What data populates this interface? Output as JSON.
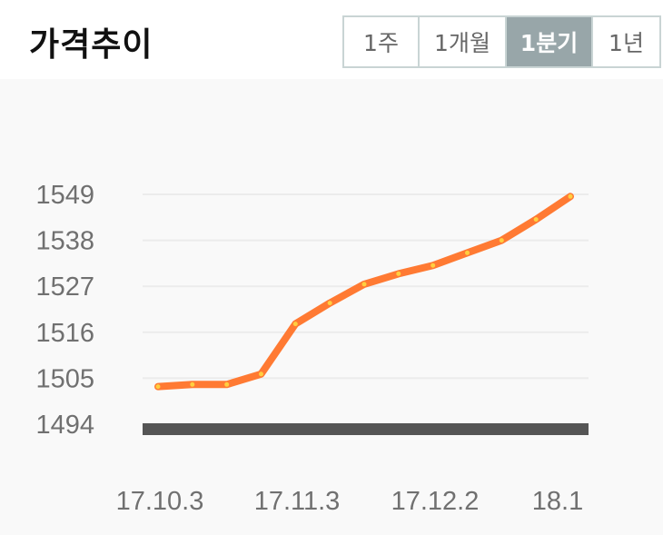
{
  "header": {
    "title": "가격추이"
  },
  "tabs": [
    {
      "label": "1주",
      "active": false
    },
    {
      "label": "1개월",
      "active": false
    },
    {
      "label": "1분기",
      "active": true
    },
    {
      "label": "1년",
      "active": false
    }
  ],
  "colors": {
    "line": "#ff7a33",
    "marker": "#ffcf40",
    "baseline": "#555555",
    "grid": "#ececec",
    "active_tab": "#98a6a9"
  },
  "chart_data": {
    "type": "line",
    "title": "",
    "xlabel": "",
    "ylabel": "",
    "ylim": [
      1494,
      1549
    ],
    "y_ticks": [
      "1549",
      "1538",
      "1527",
      "1516",
      "1505",
      "1494"
    ],
    "x_ticks": [
      "17.10.3",
      "17.11.3",
      "17.12.2",
      "18.1"
    ],
    "grid": true,
    "series": [
      {
        "values": [
          1503,
          1503.5,
          1503.5,
          1506,
          1518,
          1523,
          1527.5,
          1530,
          1532,
          1535,
          1538,
          1543,
          1548.5
        ]
      }
    ]
  }
}
